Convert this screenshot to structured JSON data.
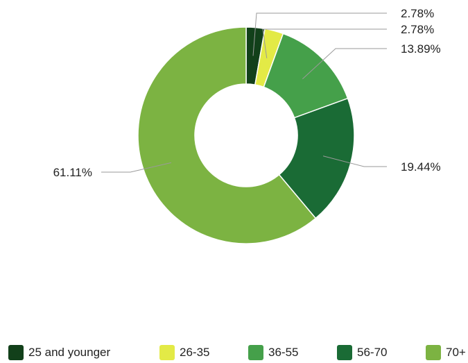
{
  "chart_data": {
    "type": "pie",
    "subtype": "donut",
    "categories": [
      "25 and younger",
      "26-35",
      "36-55",
      "56-70",
      "70+"
    ],
    "values": [
      2.78,
      2.78,
      13.89,
      19.44,
      61.11
    ],
    "data_labels": [
      "2.78%",
      "2.78%",
      "13.89%",
      "19.44%",
      "61.11%"
    ],
    "colors": [
      "#12401a",
      "#e3ea46",
      "#45a04a",
      "#1a6b35",
      "#7cb342"
    ],
    "legend_position": "bottom",
    "title": ""
  }
}
